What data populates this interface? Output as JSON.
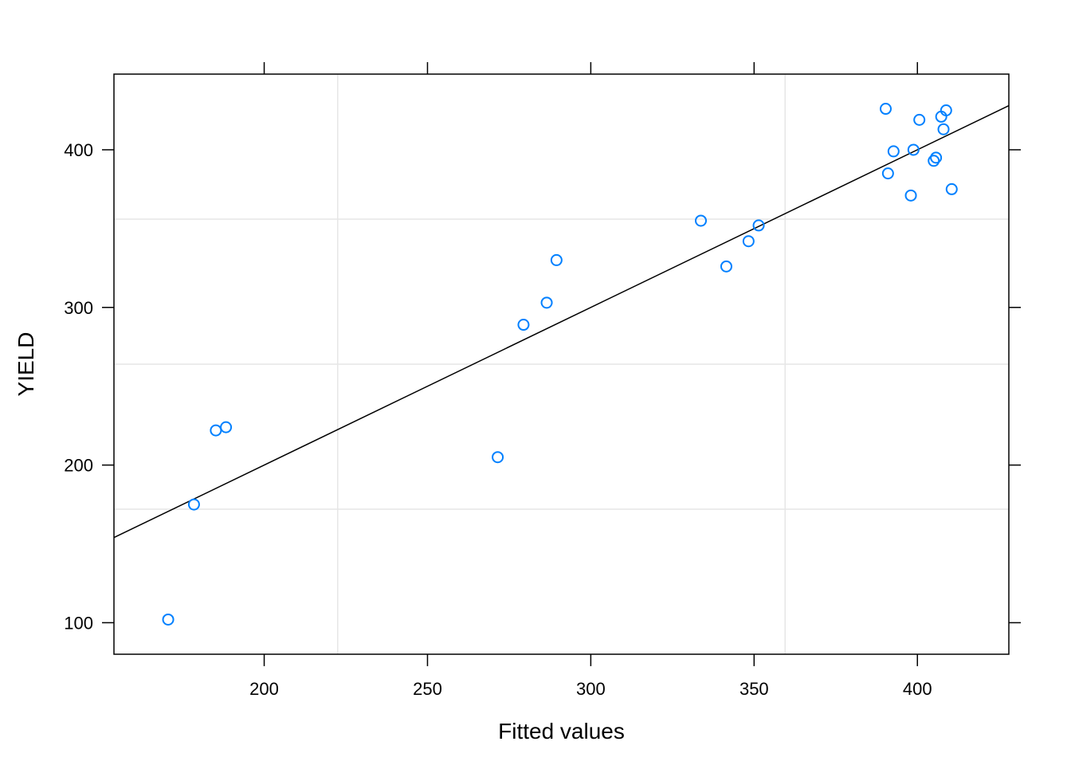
{
  "chart_data": {
    "type": "scatter",
    "title": "",
    "xlabel": "Fitted values",
    "ylabel": "YIELD",
    "xlim": [
      154,
      428
    ],
    "ylim": [
      80,
      448
    ],
    "x_ticks": [
      200,
      250,
      300,
      350,
      400
    ],
    "y_ticks": [
      100,
      200,
      300,
      400
    ],
    "grid": true,
    "grid_x": [
      222.5,
      359.5
    ],
    "grid_y": [
      172,
      264,
      356
    ],
    "point_color": "#0080ff",
    "line_color": "#000000",
    "grid_color": "#e6e6e6",
    "points": [
      {
        "x": 170.6,
        "y": 102
      },
      {
        "x": 178.5,
        "y": 175
      },
      {
        "x": 185.2,
        "y": 222
      },
      {
        "x": 188.3,
        "y": 224
      },
      {
        "x": 271.5,
        "y": 205
      },
      {
        "x": 279.4,
        "y": 289
      },
      {
        "x": 286.5,
        "y": 303
      },
      {
        "x": 289.5,
        "y": 330
      },
      {
        "x": 333.7,
        "y": 355
      },
      {
        "x": 341.5,
        "y": 326
      },
      {
        "x": 348.3,
        "y": 342
      },
      {
        "x": 351.4,
        "y": 352
      },
      {
        "x": 390.3,
        "y": 426
      },
      {
        "x": 391.0,
        "y": 385
      },
      {
        "x": 392.7,
        "y": 399
      },
      {
        "x": 398.0,
        "y": 371
      },
      {
        "x": 398.8,
        "y": 400
      },
      {
        "x": 400.6,
        "y": 419
      },
      {
        "x": 405.0,
        "y": 393
      },
      {
        "x": 405.7,
        "y": 395
      },
      {
        "x": 407.3,
        "y": 421
      },
      {
        "x": 408.0,
        "y": 413
      },
      {
        "x": 408.8,
        "y": 425
      },
      {
        "x": 410.5,
        "y": 375
      }
    ],
    "fit_line": {
      "x": [
        154,
        428
      ],
      "y": [
        154,
        428
      ]
    }
  }
}
